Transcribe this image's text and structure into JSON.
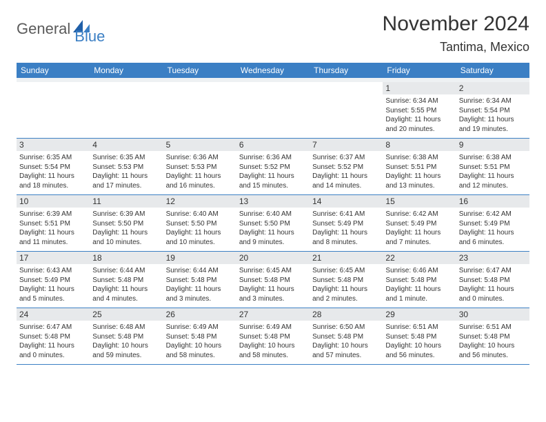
{
  "logo": {
    "text1": "General",
    "text2": "Blue"
  },
  "title": "November 2024",
  "location": "Tantima, Mexico",
  "colors": {
    "header_bg": "#3b7fc4",
    "header_text": "#ffffff",
    "daynum_bg": "#e7e9eb",
    "border": "#3b7fc4",
    "body_text": "#333333",
    "logo_gray": "#5a5a5a",
    "logo_blue": "#3b7fc4"
  },
  "dow": [
    "Sunday",
    "Monday",
    "Tuesday",
    "Wednesday",
    "Thursday",
    "Friday",
    "Saturday"
  ],
  "weeks": [
    [
      {
        "n": "",
        "sr": "",
        "ss": "",
        "dl": ""
      },
      {
        "n": "",
        "sr": "",
        "ss": "",
        "dl": ""
      },
      {
        "n": "",
        "sr": "",
        "ss": "",
        "dl": ""
      },
      {
        "n": "",
        "sr": "",
        "ss": "",
        "dl": ""
      },
      {
        "n": "",
        "sr": "",
        "ss": "",
        "dl": ""
      },
      {
        "n": "1",
        "sr": "Sunrise: 6:34 AM",
        "ss": "Sunset: 5:55 PM",
        "dl": "Daylight: 11 hours and 20 minutes."
      },
      {
        "n": "2",
        "sr": "Sunrise: 6:34 AM",
        "ss": "Sunset: 5:54 PM",
        "dl": "Daylight: 11 hours and 19 minutes."
      }
    ],
    [
      {
        "n": "3",
        "sr": "Sunrise: 6:35 AM",
        "ss": "Sunset: 5:54 PM",
        "dl": "Daylight: 11 hours and 18 minutes."
      },
      {
        "n": "4",
        "sr": "Sunrise: 6:35 AM",
        "ss": "Sunset: 5:53 PM",
        "dl": "Daylight: 11 hours and 17 minutes."
      },
      {
        "n": "5",
        "sr": "Sunrise: 6:36 AM",
        "ss": "Sunset: 5:53 PM",
        "dl": "Daylight: 11 hours and 16 minutes."
      },
      {
        "n": "6",
        "sr": "Sunrise: 6:36 AM",
        "ss": "Sunset: 5:52 PM",
        "dl": "Daylight: 11 hours and 15 minutes."
      },
      {
        "n": "7",
        "sr": "Sunrise: 6:37 AM",
        "ss": "Sunset: 5:52 PM",
        "dl": "Daylight: 11 hours and 14 minutes."
      },
      {
        "n": "8",
        "sr": "Sunrise: 6:38 AM",
        "ss": "Sunset: 5:51 PM",
        "dl": "Daylight: 11 hours and 13 minutes."
      },
      {
        "n": "9",
        "sr": "Sunrise: 6:38 AM",
        "ss": "Sunset: 5:51 PM",
        "dl": "Daylight: 11 hours and 12 minutes."
      }
    ],
    [
      {
        "n": "10",
        "sr": "Sunrise: 6:39 AM",
        "ss": "Sunset: 5:51 PM",
        "dl": "Daylight: 11 hours and 11 minutes."
      },
      {
        "n": "11",
        "sr": "Sunrise: 6:39 AM",
        "ss": "Sunset: 5:50 PM",
        "dl": "Daylight: 11 hours and 10 minutes."
      },
      {
        "n": "12",
        "sr": "Sunrise: 6:40 AM",
        "ss": "Sunset: 5:50 PM",
        "dl": "Daylight: 11 hours and 10 minutes."
      },
      {
        "n": "13",
        "sr": "Sunrise: 6:40 AM",
        "ss": "Sunset: 5:50 PM",
        "dl": "Daylight: 11 hours and 9 minutes."
      },
      {
        "n": "14",
        "sr": "Sunrise: 6:41 AM",
        "ss": "Sunset: 5:49 PM",
        "dl": "Daylight: 11 hours and 8 minutes."
      },
      {
        "n": "15",
        "sr": "Sunrise: 6:42 AM",
        "ss": "Sunset: 5:49 PM",
        "dl": "Daylight: 11 hours and 7 minutes."
      },
      {
        "n": "16",
        "sr": "Sunrise: 6:42 AM",
        "ss": "Sunset: 5:49 PM",
        "dl": "Daylight: 11 hours and 6 minutes."
      }
    ],
    [
      {
        "n": "17",
        "sr": "Sunrise: 6:43 AM",
        "ss": "Sunset: 5:49 PM",
        "dl": "Daylight: 11 hours and 5 minutes."
      },
      {
        "n": "18",
        "sr": "Sunrise: 6:44 AM",
        "ss": "Sunset: 5:48 PM",
        "dl": "Daylight: 11 hours and 4 minutes."
      },
      {
        "n": "19",
        "sr": "Sunrise: 6:44 AM",
        "ss": "Sunset: 5:48 PM",
        "dl": "Daylight: 11 hours and 3 minutes."
      },
      {
        "n": "20",
        "sr": "Sunrise: 6:45 AM",
        "ss": "Sunset: 5:48 PM",
        "dl": "Daylight: 11 hours and 3 minutes."
      },
      {
        "n": "21",
        "sr": "Sunrise: 6:45 AM",
        "ss": "Sunset: 5:48 PM",
        "dl": "Daylight: 11 hours and 2 minutes."
      },
      {
        "n": "22",
        "sr": "Sunrise: 6:46 AM",
        "ss": "Sunset: 5:48 PM",
        "dl": "Daylight: 11 hours and 1 minute."
      },
      {
        "n": "23",
        "sr": "Sunrise: 6:47 AM",
        "ss": "Sunset: 5:48 PM",
        "dl": "Daylight: 11 hours and 0 minutes."
      }
    ],
    [
      {
        "n": "24",
        "sr": "Sunrise: 6:47 AM",
        "ss": "Sunset: 5:48 PM",
        "dl": "Daylight: 11 hours and 0 minutes."
      },
      {
        "n": "25",
        "sr": "Sunrise: 6:48 AM",
        "ss": "Sunset: 5:48 PM",
        "dl": "Daylight: 10 hours and 59 minutes."
      },
      {
        "n": "26",
        "sr": "Sunrise: 6:49 AM",
        "ss": "Sunset: 5:48 PM",
        "dl": "Daylight: 10 hours and 58 minutes."
      },
      {
        "n": "27",
        "sr": "Sunrise: 6:49 AM",
        "ss": "Sunset: 5:48 PM",
        "dl": "Daylight: 10 hours and 58 minutes."
      },
      {
        "n": "28",
        "sr": "Sunrise: 6:50 AM",
        "ss": "Sunset: 5:48 PM",
        "dl": "Daylight: 10 hours and 57 minutes."
      },
      {
        "n": "29",
        "sr": "Sunrise: 6:51 AM",
        "ss": "Sunset: 5:48 PM",
        "dl": "Daylight: 10 hours and 56 minutes."
      },
      {
        "n": "30",
        "sr": "Sunrise: 6:51 AM",
        "ss": "Sunset: 5:48 PM",
        "dl": "Daylight: 10 hours and 56 minutes."
      }
    ]
  ]
}
